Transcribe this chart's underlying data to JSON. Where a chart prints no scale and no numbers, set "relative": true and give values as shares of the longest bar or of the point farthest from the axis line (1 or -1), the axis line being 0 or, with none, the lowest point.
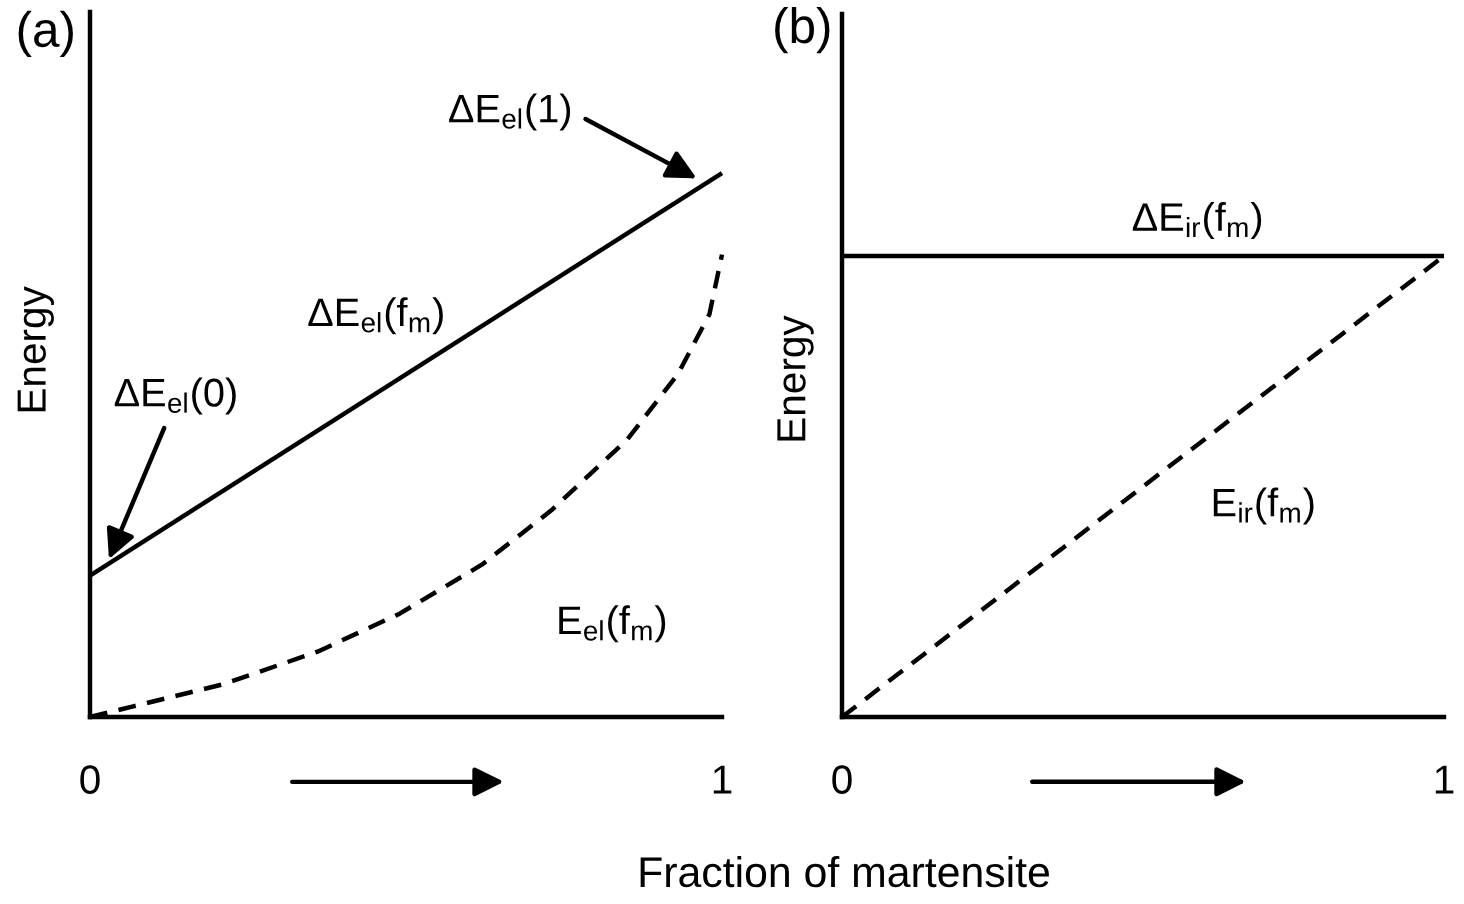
{
  "chart_data": [
    {
      "type": "line",
      "title": "(a)",
      "xlabel": "Fraction of martensite",
      "ylabel": "Energy",
      "relative": true,
      "xlim": [
        0,
        1
      ],
      "xticks": [
        0,
        1
      ],
      "series": [
        {
          "name": "ΔE$_{el}$(f$_{m}$)",
          "color": "#000000",
          "line_style": "solid",
          "x": [
            0,
            1
          ],
          "values": [
            0.26,
            1
          ]
        },
        {
          "name": "E$_{el}$(f$_{m}$)",
          "color": "#000000",
          "line_style": "dashed",
          "x": [
            0,
            0.07,
            0.21,
            0.36,
            0.49,
            0.62,
            0.73,
            0.85,
            0.93,
            0.98,
            1
          ],
          "values": [
            0,
            0.02,
            0.06,
            0.12,
            0.19,
            0.28,
            0.38,
            0.51,
            0.63,
            0.74,
            0.85
          ]
        }
      ],
      "annotations": [
        {
          "text": "ΔE$_{el}$(1)",
          "x": 0.96,
          "y": 0.99
        },
        {
          "text": "ΔE$_{el}$(0)",
          "x": 0.03,
          "y": 0.29
        }
      ]
    },
    {
      "type": "line",
      "title": "(b)",
      "ylabel": "Energy",
      "relative": true,
      "xlim": [
        0,
        1
      ],
      "xticks": [
        0,
        1
      ],
      "series": [
        {
          "name": "ΔE$_{ir}$(f$_{m}$)",
          "color": "#000000",
          "line_style": "solid",
          "x": [
            0,
            1
          ],
          "values": [
            1,
            1
          ]
        },
        {
          "name": "E$_{ir}$(f$_{m}$)",
          "color": "#000000",
          "line_style": "dashed",
          "x": [
            0,
            1
          ],
          "values": [
            0,
            1
          ]
        }
      ]
    }
  ]
}
